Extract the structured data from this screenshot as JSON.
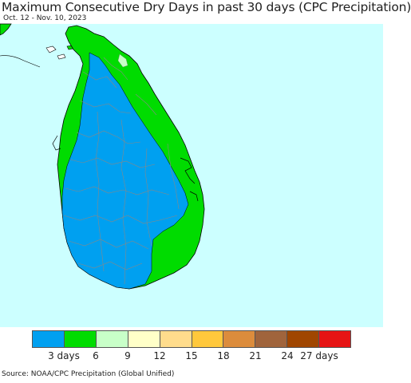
{
  "title": "Maximum Consecutive Dry Days in past 30 days (CPC Precipitation)",
  "subtitle": "Oct. 12 - Nov. 10, 2023",
  "source": "Source: NOAA/CPC Precipitation (Global Unified)",
  "colors": {
    "ocean": "#ccffff",
    "border": "#888888",
    "coast": "#000000"
  },
  "legend": {
    "colors": [
      "#00a0f0",
      "#00dc00",
      "#c8ffc8",
      "#ffffc8",
      "#ffdc8c",
      "#ffc83c",
      "#dc8c3c",
      "#a0643c",
      "#a04600",
      "#e61414"
    ],
    "labels": [
      "3 days",
      "6",
      "9",
      "12",
      "15",
      "18",
      "21",
      "24",
      "27 days"
    ]
  }
}
